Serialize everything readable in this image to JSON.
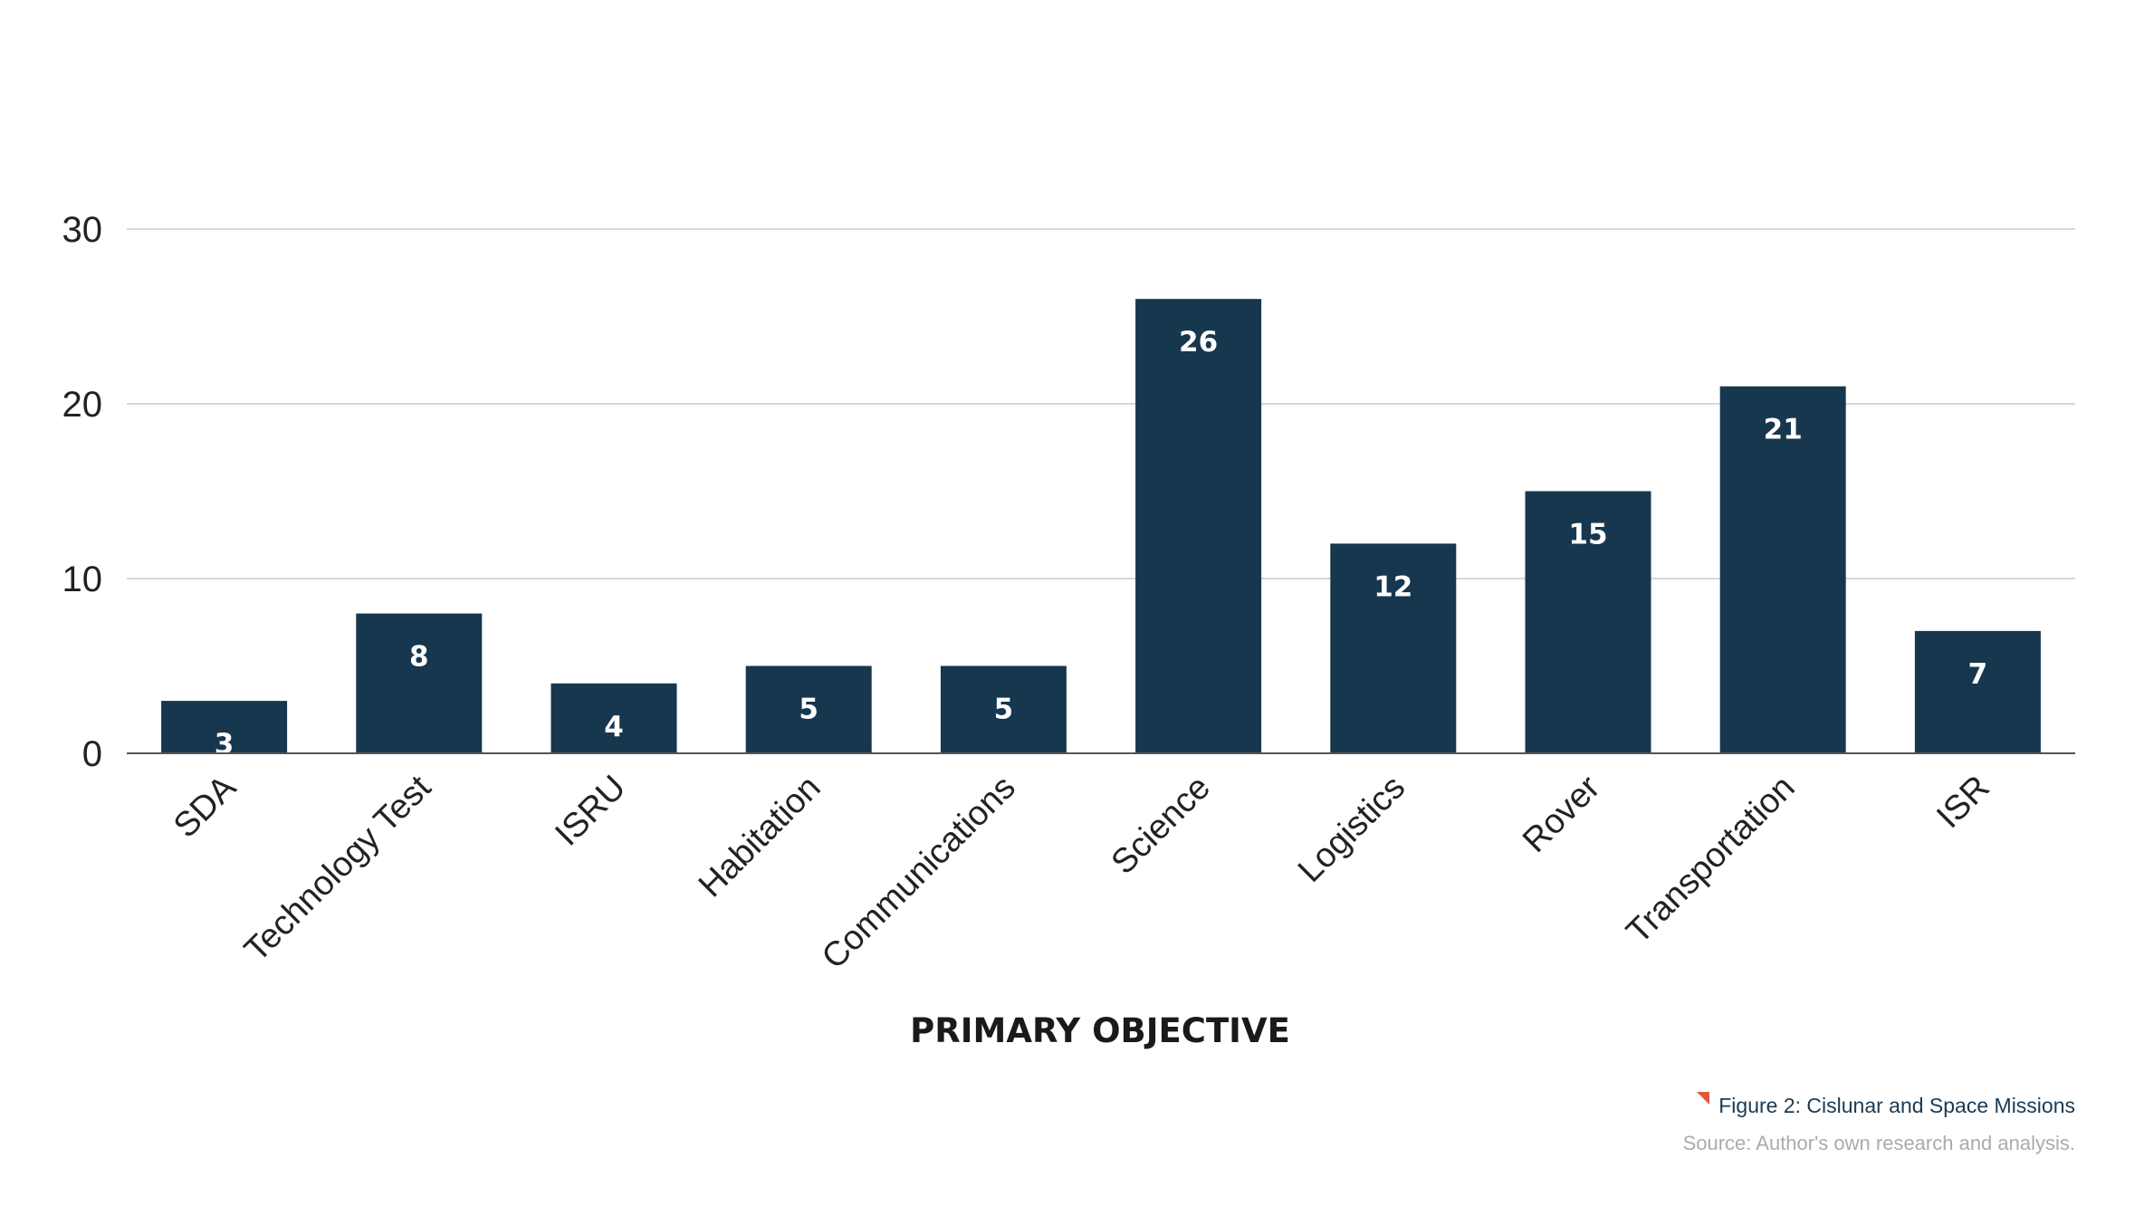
{
  "chart_data": {
    "type": "bar",
    "categories": [
      "SDA",
      "Technology Test",
      "ISRU",
      "Habitation",
      "Communications",
      "Science",
      "Logistics",
      "Rover",
      "Transportation",
      "ISR"
    ],
    "values": [
      3,
      8,
      4,
      5,
      5,
      26,
      12,
      15,
      21,
      7
    ],
    "xlabel": "PRIMARY OBJECTIVE",
    "ylabel": "",
    "ylim": [
      0,
      30
    ],
    "yticks": [
      0,
      10,
      20,
      30
    ],
    "grid": true,
    "data_labels": true,
    "bar_color": "#17374f",
    "grid_color": "#d5d8db",
    "axis_color": "#555555"
  },
  "caption": {
    "figure": "Figure 2: Cislunar and Space Missions",
    "source": "Source: Author's own research and analysis.",
    "flag_color": "#e05a3a"
  }
}
